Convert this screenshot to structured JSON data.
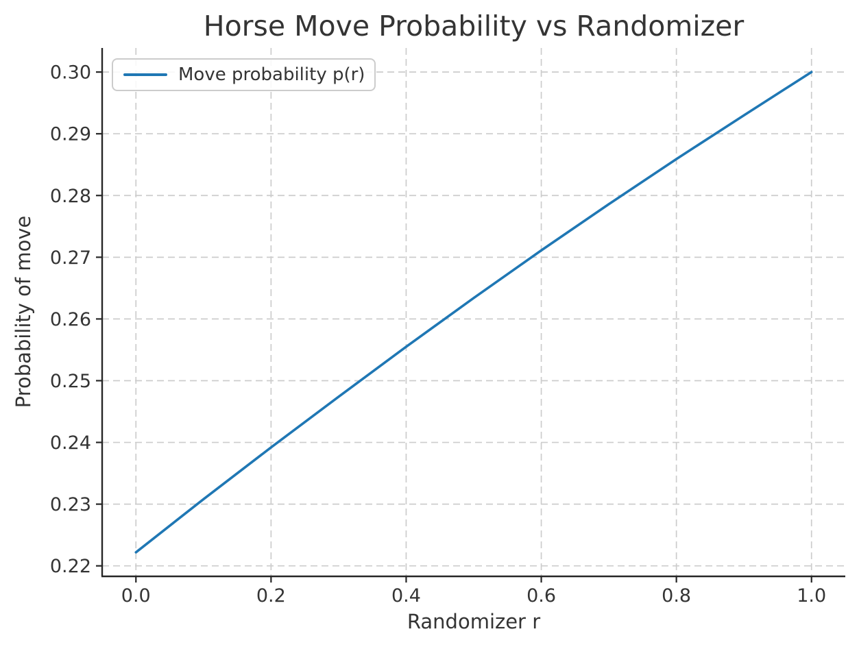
{
  "figure": {
    "title": "Horse Move Probability vs Randomizer",
    "xlabel": "Randomizer r",
    "ylabel": "Probability of move",
    "legend": {
      "label": "Move probability p(r)"
    }
  },
  "colors": {
    "series_blue": "#1f77b4",
    "text": "#343434",
    "spine": "#262626",
    "grid": "#cccccc",
    "background": "#ffffff"
  },
  "chart_data": {
    "type": "line",
    "title": "Horse Move Probability vs Randomizer",
    "xlabel": "Randomizer r",
    "ylabel": "Probability of move",
    "grid": true,
    "grid_style": "dashed",
    "legend_position": "upper left",
    "xlim": [
      -0.05,
      1.05
    ],
    "ylim": [
      0.2183,
      0.3039
    ],
    "x_ticks": [
      0.0,
      0.2,
      0.4,
      0.6,
      0.8,
      1.0
    ],
    "x_tick_labels": [
      "0.0",
      "0.2",
      "0.4",
      "0.6",
      "0.8",
      "1.0"
    ],
    "y_ticks": [
      0.22,
      0.23,
      0.24,
      0.25,
      0.26,
      0.27,
      0.28,
      0.29,
      0.3
    ],
    "y_tick_labels": [
      "0.22",
      "0.23",
      "0.24",
      "0.25",
      "0.26",
      "0.27",
      "0.28",
      "0.29",
      "0.30"
    ],
    "series": [
      {
        "name": "Move probability p(r)",
        "color": "#1f77b4",
        "x": [
          0.0,
          0.1,
          0.2,
          0.3,
          0.4,
          0.5,
          0.6,
          0.7,
          0.8,
          0.9,
          1.0
        ],
        "y": [
          0.2222,
          0.2308,
          0.2392,
          0.2474,
          0.2555,
          0.2634,
          0.2711,
          0.2786,
          0.2859,
          0.293,
          0.3
        ]
      }
    ]
  }
}
